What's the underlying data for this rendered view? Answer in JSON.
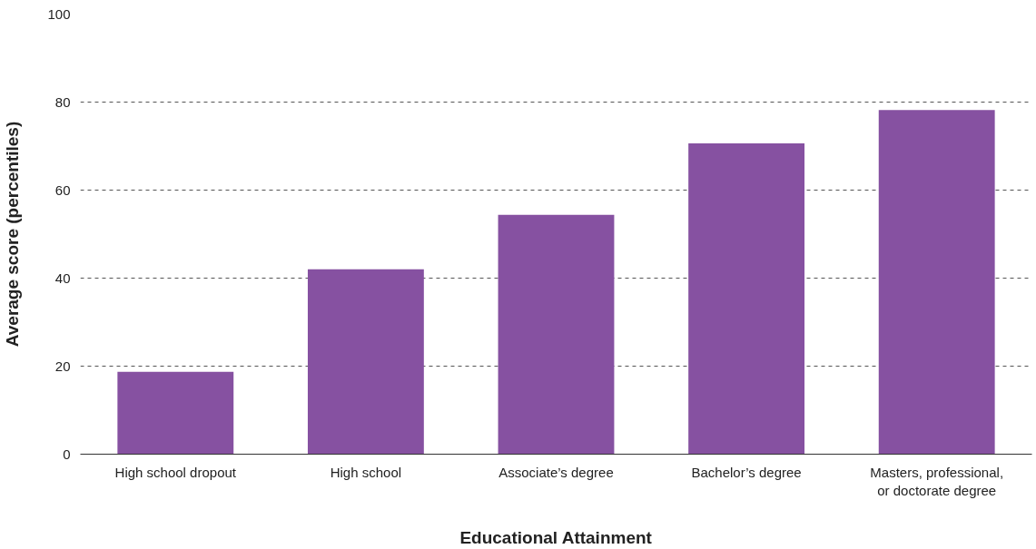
{
  "chart_data": {
    "type": "bar",
    "xlabel": "Educational Attainment",
    "ylabel": "Average score (percentiles)",
    "categories": [
      "High school dropout",
      "High school",
      "Associate’s degree",
      "Bachelor’s degree",
      "Masters, professional,\nor doctorate degree"
    ],
    "values": [
      18.7,
      42,
      54.4,
      70.6,
      78.2
    ],
    "color": "#8651a1",
    "ylim": [
      0,
      100
    ],
    "yticks": [
      0,
      20,
      40,
      60,
      80,
      100
    ],
    "grid": "y",
    "line_style": "dashed"
  }
}
